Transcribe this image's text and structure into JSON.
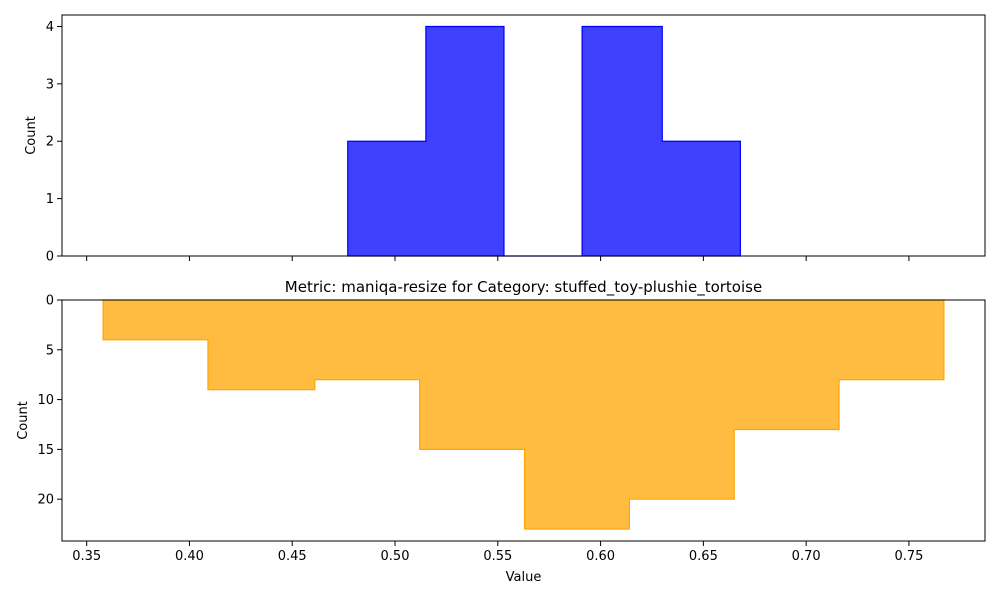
{
  "chart_data": [
    {
      "type": "histogram",
      "title": "",
      "xlabel": "",
      "ylabel": "Count",
      "color": "#0000ff",
      "bins": [
        {
          "x0": 0.477,
          "x1": 0.515,
          "count": 2
        },
        {
          "x0": 0.515,
          "x1": 0.553,
          "count": 4
        },
        {
          "x0": 0.553,
          "x1": 0.591,
          "count": 0
        },
        {
          "x0": 0.591,
          "x1": 0.63,
          "count": 4
        },
        {
          "x0": 0.63,
          "x1": 0.668,
          "count": 2
        }
      ],
      "ylim": [
        0,
        4.2
      ],
      "yticks": [
        "0",
        "1",
        "2",
        "3",
        "4"
      ],
      "x_tick_labels_shown": false
    },
    {
      "type": "histogram",
      "title": "Metric: maniqa-resize for Category: stuffed_toy-plushie_tortoise",
      "xlabel": "Value",
      "ylabel": "Count",
      "color": "#ffa500",
      "y_inverted": true,
      "bins": [
        {
          "x0": 0.358,
          "x1": 0.409,
          "count": 4
        },
        {
          "x0": 0.409,
          "x1": 0.461,
          "count": 9
        },
        {
          "x0": 0.461,
          "x1": 0.512,
          "count": 8
        },
        {
          "x0": 0.512,
          "x1": 0.563,
          "count": 15
        },
        {
          "x0": 0.563,
          "x1": 0.614,
          "count": 23
        },
        {
          "x0": 0.614,
          "x1": 0.665,
          "count": 20
        },
        {
          "x0": 0.665,
          "x1": 0.716,
          "count": 13
        },
        {
          "x0": 0.716,
          "x1": 0.767,
          "count": 8
        }
      ],
      "ylim": [
        0,
        24.2
      ],
      "yticks": [
        "0",
        "5",
        "10",
        "15",
        "20"
      ],
      "xticks": [
        "0.35",
        "0.40",
        "0.45",
        "0.50",
        "0.55",
        "0.60",
        "0.65",
        "0.70",
        "0.75"
      ]
    }
  ],
  "shared_x": {
    "xlim": [
      0.338,
      0.787
    ]
  }
}
